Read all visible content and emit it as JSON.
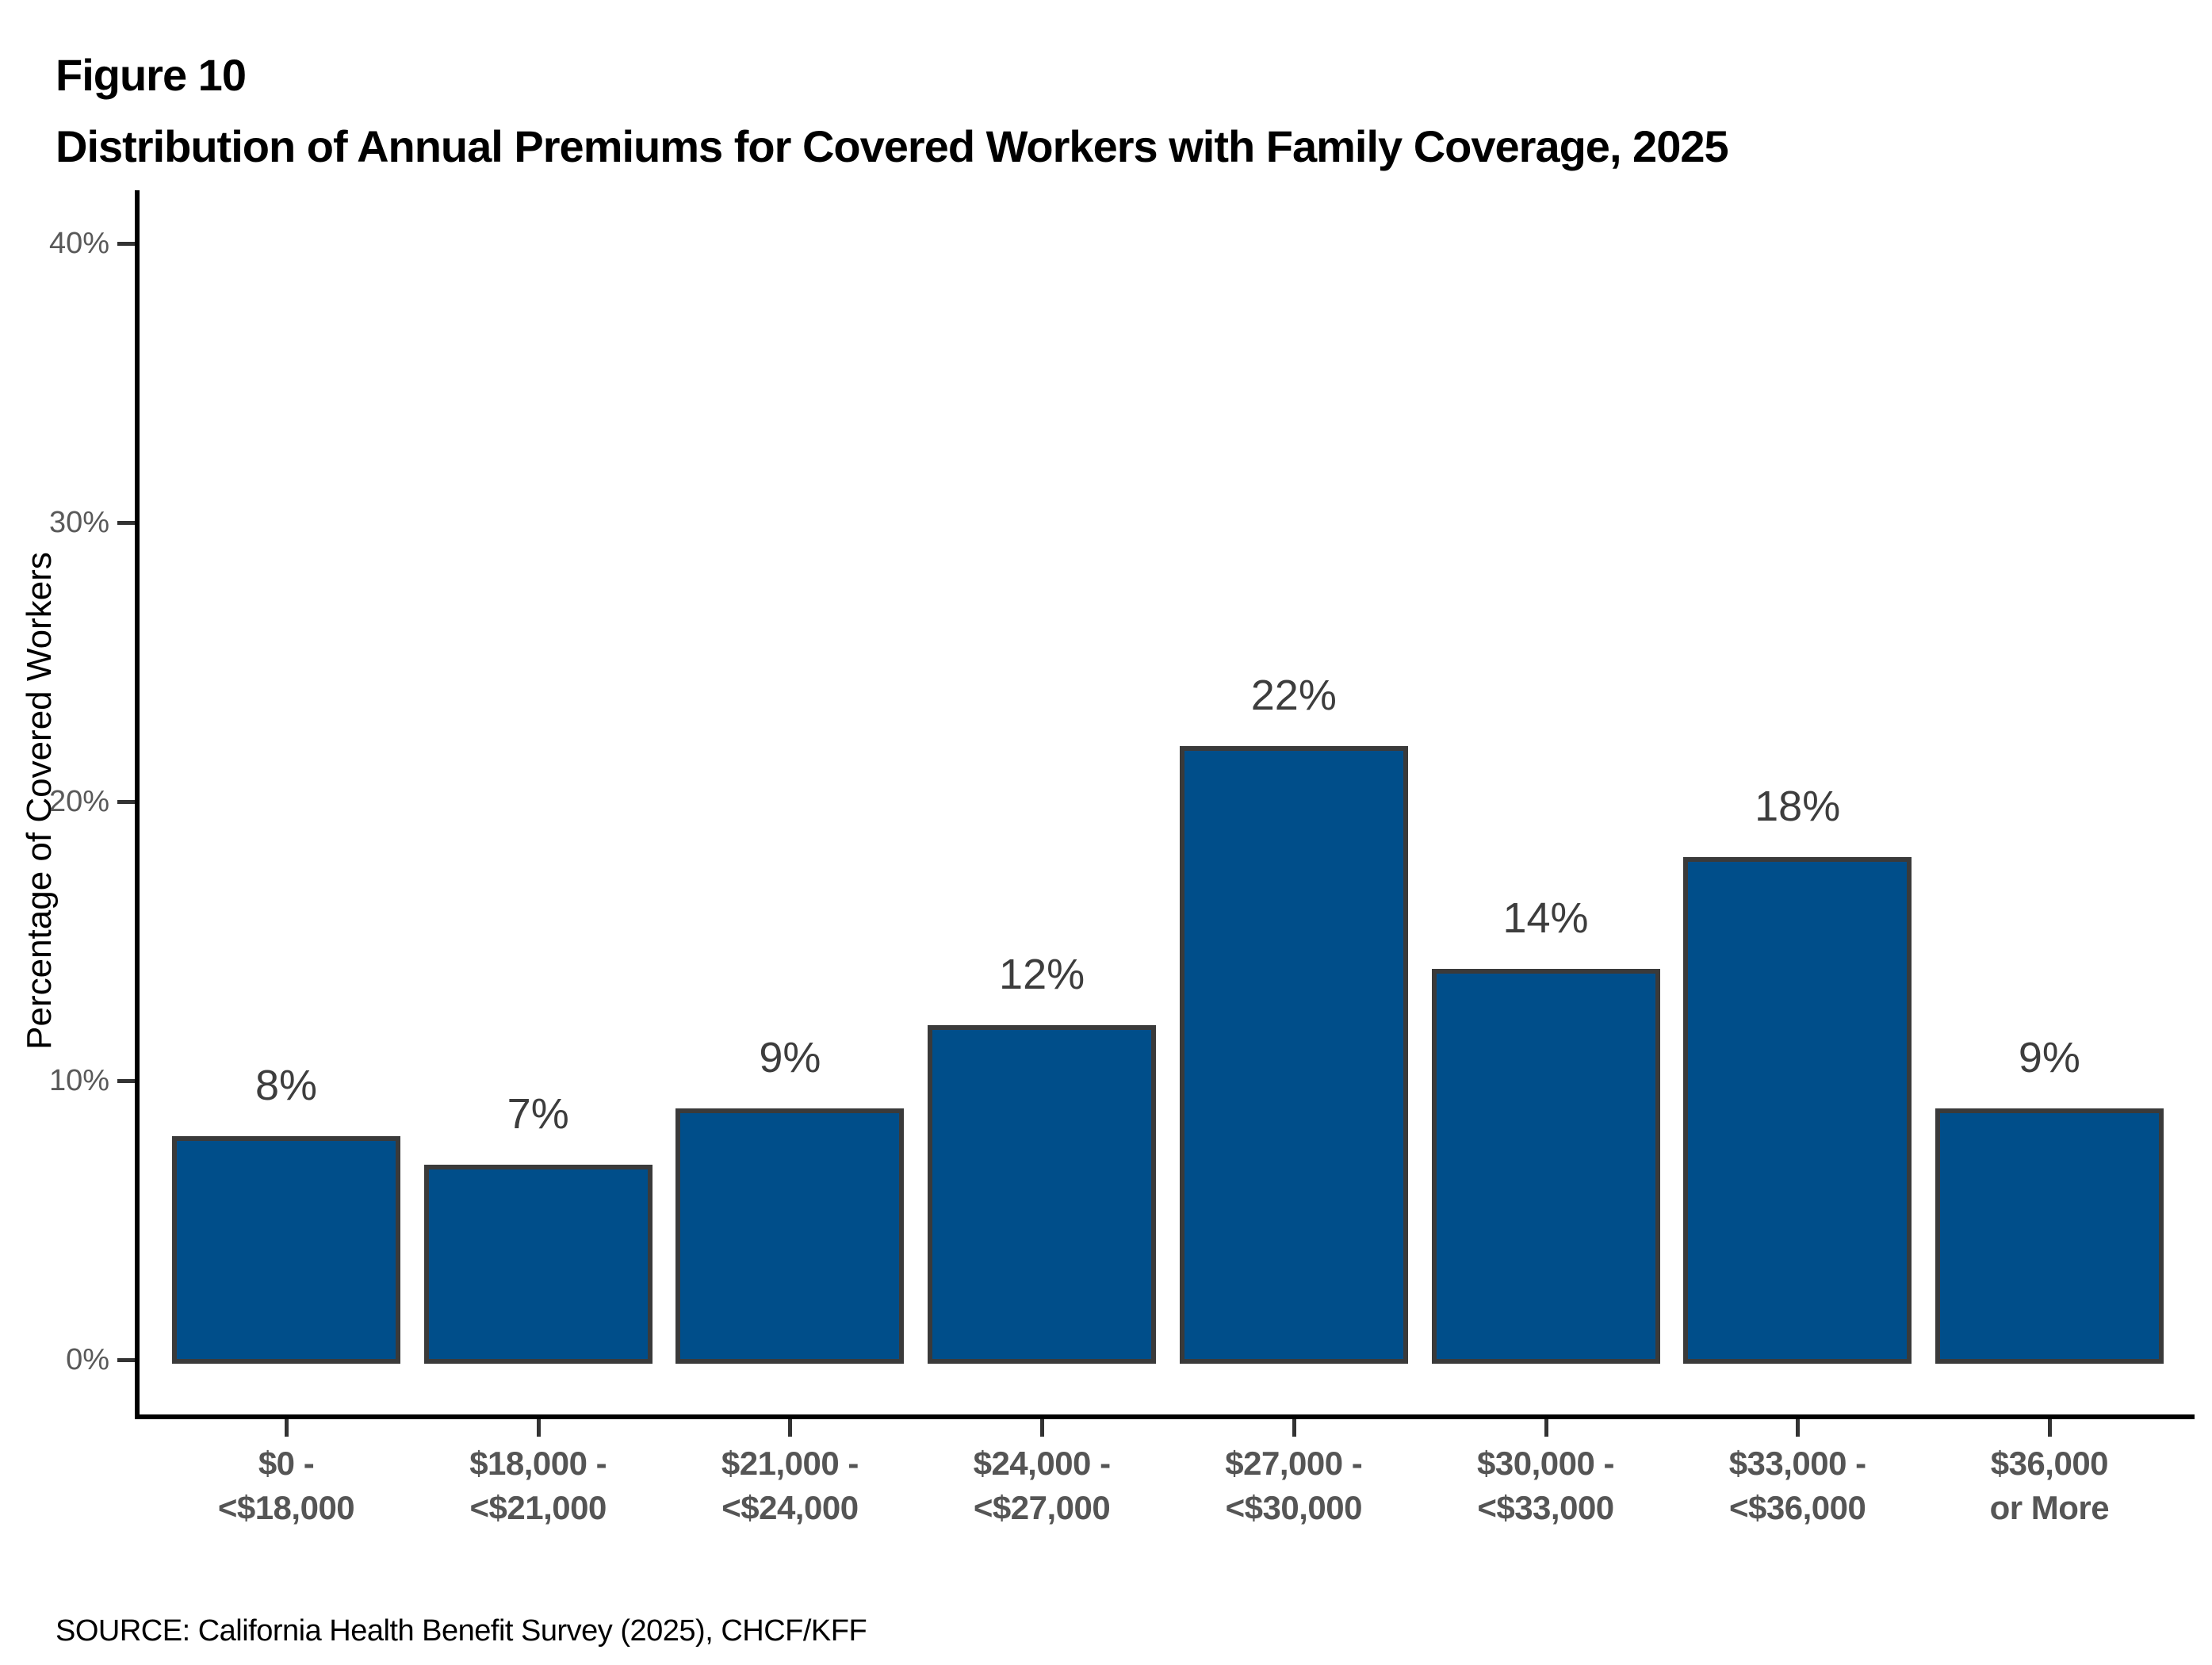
{
  "figure": {
    "label": "Figure 10",
    "title": "Distribution of Annual Premiums for Covered Workers with Family Coverage, 2025",
    "source": "SOURCE: California Health Benefit Survey (2025), CHCF/KFF"
  },
  "chart_data": {
    "type": "bar",
    "title": "Distribution of Annual Premiums for Covered Workers with Family Coverage, 2025",
    "xlabel": "",
    "ylabel": "Percentage of Covered Workers",
    "ylim": [
      0,
      40
    ],
    "yticks": [
      0,
      10,
      20,
      30,
      40
    ],
    "ytick_labels": [
      "0%",
      "10%",
      "20%",
      "30%",
      "40%"
    ],
    "grid": false,
    "legend": "none",
    "categories": [
      "$0 - <$18,000",
      "$18,000 - <$21,000",
      "$21,000 - <$24,000",
      "$24,000 - <$27,000",
      "$27,000 - <$30,000",
      "$30,000 - <$33,000",
      "$33,000 - <$36,000",
      "$36,000 or More"
    ],
    "category_lines": [
      [
        "$0 -",
        "<$18,000"
      ],
      [
        "$18,000 -",
        "<$21,000"
      ],
      [
        "$21,000 -",
        "<$24,000"
      ],
      [
        "$24,000 -",
        "<$27,000"
      ],
      [
        "$27,000 -",
        "<$30,000"
      ],
      [
        "$30,000 -",
        "<$33,000"
      ],
      [
        "$33,000 -",
        "<$36,000"
      ],
      [
        "$36,000",
        "or More"
      ]
    ],
    "values": [
      8,
      7,
      9,
      12,
      22,
      14,
      18,
      9
    ],
    "value_labels": [
      "8%",
      "7%",
      "9%",
      "12%",
      "22%",
      "14%",
      "18%",
      "9%"
    ],
    "colors": {
      "bar_fill": "#004E8A",
      "bar_border": "#3A3A3A",
      "axis": "#000000",
      "tick": "#333333",
      "ytick_label": "#595959",
      "xtick_label": "#555555",
      "value_label": "#3D3D3D"
    }
  }
}
